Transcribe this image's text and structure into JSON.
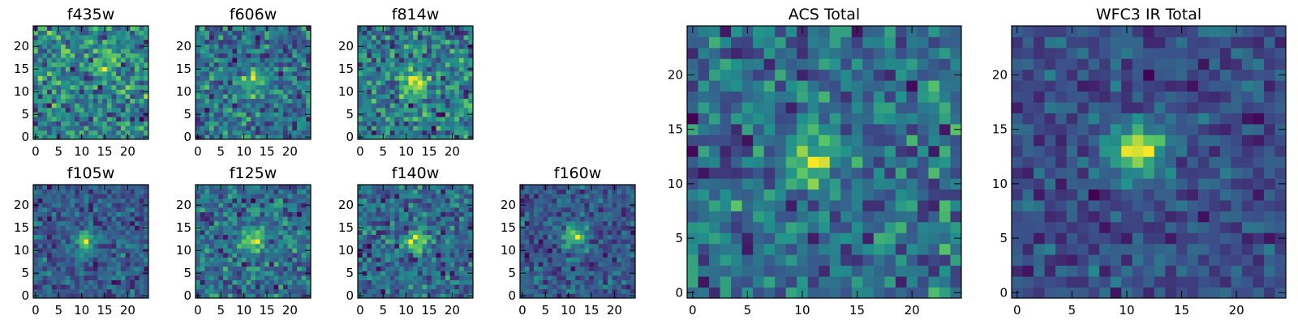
{
  "chart_data": [
    {
      "type": "heatmap",
      "title": "f435w",
      "xlim": [
        -0.5,
        24.5
      ],
      "ylim": [
        -0.5,
        24.5
      ],
      "xticks": [
        0,
        5,
        10,
        15,
        20
      ],
      "yticks": [
        0,
        5,
        10,
        15,
        20
      ],
      "grid_size": 25,
      "center": [
        16,
        17
      ],
      "source_strength": 0.3,
      "seed": 11
    },
    {
      "type": "heatmap",
      "title": "f606w",
      "xlim": [
        -0.5,
        24.5
      ],
      "ylim": [
        -0.5,
        24.5
      ],
      "xticks": [
        0,
        5,
        10,
        15,
        20
      ],
      "yticks": [
        0,
        5,
        10,
        15,
        20
      ],
      "grid_size": 25,
      "center": [
        12,
        12
      ],
      "source_strength": 0.4,
      "seed": 23
    },
    {
      "type": "heatmap",
      "title": "f814w",
      "xlim": [
        -0.5,
        24.5
      ],
      "ylim": [
        -0.5,
        24.5
      ],
      "xticks": [
        0,
        5,
        10,
        15,
        20
      ],
      "yticks": [
        0,
        5,
        10,
        15,
        20
      ],
      "grid_size": 25,
      "center": [
        12,
        12
      ],
      "source_strength": 0.6,
      "seed": 37
    },
    {
      "type": "heatmap",
      "title": "f105w",
      "xlim": [
        -0.5,
        24.5
      ],
      "ylim": [
        -0.5,
        24.5
      ],
      "xticks": [
        0,
        5,
        10,
        15,
        20
      ],
      "yticks": [
        0,
        5,
        10,
        15,
        20
      ],
      "grid_size": 25,
      "center": [
        11,
        12
      ],
      "source_strength": 0.7,
      "seed": 41
    },
    {
      "type": "heatmap",
      "title": "f125w",
      "xlim": [
        -0.5,
        24.5
      ],
      "ylim": [
        -0.5,
        24.5
      ],
      "xticks": [
        0,
        5,
        10,
        15,
        20
      ],
      "yticks": [
        0,
        5,
        10,
        15,
        20
      ],
      "grid_size": 25,
      "center": [
        12,
        12
      ],
      "source_strength": 0.6,
      "seed": 53
    },
    {
      "type": "heatmap",
      "title": "f140w",
      "xlim": [
        -0.5,
        24.5
      ],
      "ylim": [
        -0.5,
        24.5
      ],
      "xticks": [
        0,
        5,
        10,
        15,
        20
      ],
      "yticks": [
        0,
        5,
        10,
        15,
        20
      ],
      "grid_size": 25,
      "center": [
        12,
        12
      ],
      "source_strength": 0.6,
      "seed": 67
    },
    {
      "type": "heatmap",
      "title": "f160w",
      "xlim": [
        -0.5,
        24.5
      ],
      "ylim": [
        -0.5,
        24.5
      ],
      "xticks": [
        0,
        5,
        10,
        15,
        20
      ],
      "yticks": [
        0,
        5,
        10,
        15,
        20
      ],
      "grid_size": 25,
      "center": [
        11,
        13
      ],
      "source_strength": 0.9,
      "seed": 71
    },
    {
      "type": "heatmap",
      "title": "ACS Total",
      "xlim": [
        -0.5,
        24.5
      ],
      "ylim": [
        -0.5,
        24.5
      ],
      "xticks": [
        0,
        5,
        10,
        15,
        20
      ],
      "yticks": [
        0,
        5,
        10,
        15,
        20
      ],
      "grid_size": 25,
      "center": [
        11,
        12
      ],
      "source_strength": 0.6,
      "seed": 83
    },
    {
      "type": "heatmap",
      "title": "WFC3 IR Total",
      "xlim": [
        -0.5,
        24.5
      ],
      "ylim": [
        -0.5,
        24.5
      ],
      "xticks": [
        0,
        5,
        10,
        15,
        20
      ],
      "yticks": [
        0,
        5,
        10,
        15,
        20
      ],
      "grid_size": 25,
      "center": [
        11,
        13
      ],
      "source_strength": 1.3,
      "seed": 97
    }
  ],
  "colors": {
    "colormap": "viridis",
    "colormap_stops": [
      "#440154",
      "#3b528b",
      "#21918c",
      "#5ec962",
      "#fde725"
    ],
    "axis": "#000000"
  }
}
